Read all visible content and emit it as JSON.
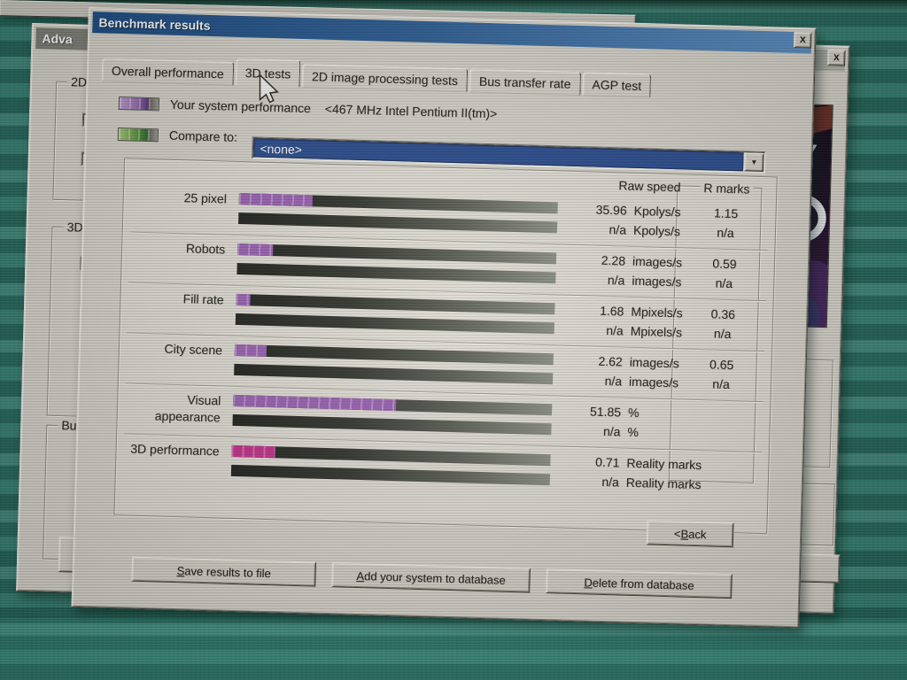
{
  "frontDialog": {
    "title": "Benchmark results",
    "tabs": [
      "Overall performance",
      "3D tests",
      "2D image processing tests",
      "Bus transfer rate",
      "AGP test"
    ],
    "activeTab": "3D tests",
    "legend": {
      "yourSystemLabel": "Your system performance",
      "yourSystemDetail": "<467 MHz Intel Pentium II(tm)>",
      "compareLabel": "Compare to:",
      "compareValue": "<none>"
    },
    "results": {
      "rawSpeedHeader": "Raw speed",
      "rMarksHeader": "R marks",
      "rows": [
        {
          "label": "25 pixel",
          "yourValue": "35.96",
          "yourUnit": "Kpolys/s",
          "yourRmark": "1.15",
          "compValue": "n/a",
          "compUnit": "Kpolys/s",
          "compRmark": "n/a",
          "fillPct": 23,
          "fillColor": "#9a62b2"
        },
        {
          "label": "Robots",
          "yourValue": "2.28",
          "yourUnit": "images/s",
          "yourRmark": "0.59",
          "compValue": "n/a",
          "compUnit": "images/s",
          "compRmark": "n/a",
          "fillPct": 11,
          "fillColor": "#9a62b2"
        },
        {
          "label": "Fill rate",
          "yourValue": "1.68",
          "yourUnit": "Mpixels/s",
          "yourRmark": "0.36",
          "compValue": "n/a",
          "compUnit": "Mpixels/s",
          "compRmark": "n/a",
          "fillPct": 4.5,
          "fillColor": "#9a62b2"
        },
        {
          "label": "City scene",
          "yourValue": "2.62",
          "yourUnit": "images/s",
          "yourRmark": "0.65",
          "compValue": "n/a",
          "compUnit": "images/s",
          "compRmark": "n/a",
          "fillPct": 10,
          "fillColor": "#9a62b2"
        },
        {
          "label": "Visual appearance",
          "yourValue": "51.85",
          "yourUnit": "%",
          "yourRmark": "",
          "compValue": "n/a",
          "compUnit": "%",
          "compRmark": "",
          "fillPct": 51,
          "fillColor": "#9a62b2"
        },
        {
          "label": "3D performance",
          "yourValue": "0.71",
          "yourUnit": "Reality marks",
          "yourRmark": "",
          "compValue": "n/a",
          "compUnit": "Reality marks",
          "compRmark": "",
          "fillPct": 13.5,
          "fillColor": "#c2338b"
        }
      ]
    },
    "buttons": {
      "back": {
        "pre": "< ",
        "key": "B",
        "rest": "ack"
      },
      "save": {
        "pre": "",
        "key": "S",
        "rest": "ave results to file"
      },
      "add": {
        "pre": "",
        "key": "A",
        "rest": "dd your system to database"
      },
      "delete": {
        "pre": "",
        "key": "D",
        "rest": "elete from database"
      }
    }
  },
  "backWindow": {
    "title": "Adva",
    "groups": [
      {
        "label": "2D"
      },
      {
        "label": "3D"
      },
      {
        "label": "Bu"
      }
    ],
    "boxArtVisibleText": "y"
  },
  "icons": {
    "close": "X",
    "dropdown": "▼",
    "check": "✓"
  },
  "colors": {
    "titlebarLeft": "#1d4e87",
    "titlebarRight": "#5c90c5",
    "comboSelection": "#2b4d8e",
    "yourBarFill": "#9a62b2",
    "lastBarFill": "#c2338b",
    "compareSwatchGreen": "#4f8f3c",
    "desktopTeal": "#2e7d6f"
  },
  "chart_data": {
    "type": "bar",
    "title": "3D tests benchmark results",
    "categories": [
      "25 pixel",
      "Robots",
      "Fill rate",
      "City scene",
      "Visual appearance",
      "3D performance"
    ],
    "series": [
      {
        "name": "Your system performance <467 MHz Intel Pentium II(tm)>",
        "raw_speed": [
          "35.96 Kpolys/s",
          "2.28 images/s",
          "1.68 Mpixels/s",
          "2.62 images/s",
          "51.85 %",
          "0.71 Reality marks"
        ],
        "r_marks": [
          "1.15",
          "0.59",
          "0.36",
          "0.65",
          null,
          null
        ],
        "bar_fill_pct": [
          23,
          11,
          4.5,
          10,
          51,
          13.5
        ]
      },
      {
        "name": "Compare to: <none>",
        "raw_speed": [
          "n/a Kpolys/s",
          "n/a images/s",
          "n/a Mpixels/s",
          "n/a images/s",
          "n/a %",
          "n/a Reality marks"
        ],
        "r_marks": [
          "n/a",
          "n/a",
          "n/a",
          "n/a",
          null,
          null
        ],
        "bar_fill_pct": [
          0,
          0,
          0,
          0,
          0,
          0
        ]
      }
    ]
  }
}
